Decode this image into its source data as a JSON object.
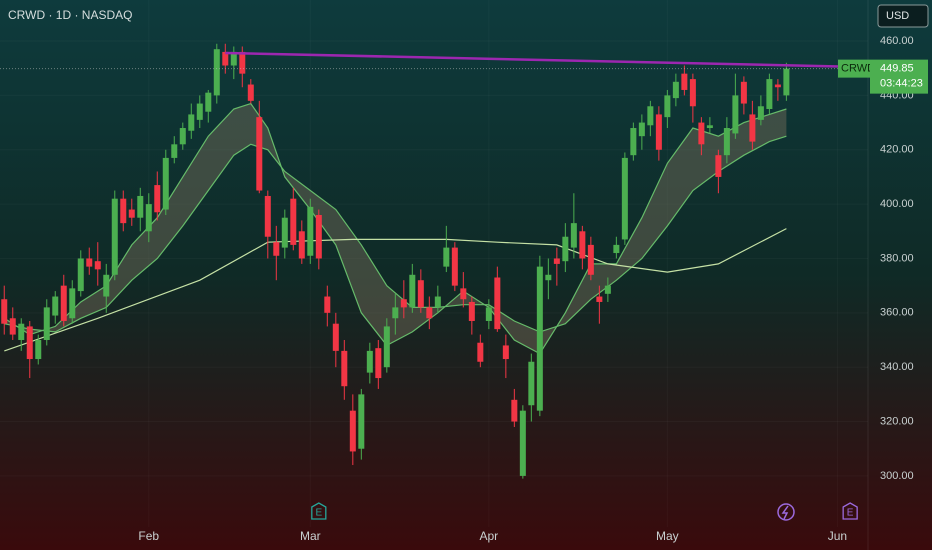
{
  "chart_data": {
    "type": "candlestick",
    "title": "CRWD · 1D · NASDAQ",
    "currency": "USD",
    "ticker": "CRWD",
    "countdown": "03:44:23",
    "up_color": "#4caf50",
    "down_color": "#f23645",
    "open": [
      365,
      358,
      350,
      355,
      343,
      350,
      359,
      370,
      358,
      368,
      380,
      379,
      366,
      374,
      402,
      398,
      395,
      390,
      407,
      398,
      417,
      422,
      427,
      431,
      434,
      440,
      456,
      451,
      456,
      444,
      432,
      403,
      386,
      384,
      402,
      390,
      381,
      396,
      366,
      356,
      346,
      324,
      310,
      338,
      347,
      340,
      358,
      365,
      362,
      372,
      362,
      362,
      377,
      384,
      369,
      364,
      349,
      357,
      373,
      348,
      328,
      300,
      326,
      324,
      372,
      380,
      379,
      384,
      390,
      385,
      366,
      367,
      382,
      387,
      418,
      425,
      429,
      433,
      432,
      439,
      448,
      446,
      430,
      428,
      418,
      418,
      426,
      445,
      433,
      431,
      435,
      444,
      440
    ],
    "high": [
      370,
      362,
      358,
      357,
      352,
      365,
      368,
      374,
      372,
      383,
      384,
      386,
      378,
      405,
      405,
      402,
      406,
      404,
      412,
      420,
      425,
      430,
      437,
      440,
      442,
      459,
      459,
      458,
      458,
      446,
      438,
      405,
      392,
      398,
      406,
      394,
      402,
      398,
      370,
      360,
      350,
      330,
      332,
      349,
      350,
      358,
      367,
      372,
      378,
      376,
      366,
      370,
      392,
      386,
      375,
      366,
      352,
      365,
      377,
      352,
      332,
      326,
      345,
      381,
      380,
      384,
      393,
      404,
      392,
      388,
      370,
      373,
      388,
      419,
      430,
      433,
      438,
      436,
      442,
      448,
      451,
      448,
      432,
      432,
      420,
      432,
      448,
      447,
      438,
      440,
      448,
      446,
      452
    ],
    "low": [
      352,
      350,
      346,
      336,
      341,
      348,
      356,
      355,
      356,
      366,
      374,
      370,
      360,
      372,
      390,
      392,
      390,
      386,
      394,
      396,
      415,
      420,
      424,
      428,
      430,
      437,
      448,
      446,
      443,
      437,
      404,
      380,
      372,
      380,
      383,
      378,
      378,
      376,
      355,
      340,
      328,
      304,
      306,
      334,
      332,
      338,
      352,
      358,
      360,
      360,
      354,
      360,
      375,
      368,
      362,
      352,
      340,
      354,
      353,
      336,
      318,
      299,
      320,
      322,
      365,
      370,
      375,
      380,
      376,
      372,
      356,
      364,
      380,
      385,
      416,
      420,
      425,
      416,
      428,
      436,
      440,
      430,
      418,
      426,
      404,
      415,
      424,
      433,
      420,
      429,
      433,
      438,
      438
    ],
    "close": [
      356,
      352,
      356,
      343,
      350,
      362,
      366,
      357,
      369,
      380,
      377,
      376,
      374,
      402,
      393,
      395,
      403,
      400,
      397,
      417,
      422,
      428,
      433,
      437,
      441,
      457,
      451,
      456,
      448,
      438,
      405,
      388,
      381,
      395,
      385,
      380,
      399,
      380,
      360,
      346,
      333,
      309,
      330,
      346,
      336,
      355,
      362,
      362,
      374,
      362,
      358,
      366,
      384,
      370,
      365,
      357,
      342,
      362,
      354,
      343,
      320,
      324,
      342,
      377,
      374,
      378,
      388,
      393,
      380,
      374,
      364,
      370,
      385,
      417,
      428,
      430,
      436,
      420,
      440,
      445,
      442,
      436,
      422,
      429,
      410,
      428,
      440,
      437,
      423,
      436,
      446,
      443,
      449.85
    ],
    "lines": [
      {
        "color": "#66bb6a",
        "x": [
          0,
          3,
          6,
          9,
          12,
          15,
          18,
          21,
          24,
          27,
          29,
          31,
          33,
          36,
          39,
          42,
          45,
          48,
          51,
          54,
          57,
          60,
          63,
          66,
          69,
          72,
          75,
          78,
          81,
          84,
          87,
          90,
          92
        ],
        "values": [
          358,
          352,
          355,
          364,
          370,
          385,
          395,
          410,
          425,
          435,
          437,
          428,
          410,
          398,
          385,
          360,
          348,
          353,
          360,
          368,
          362,
          350,
          345,
          360,
          378,
          378,
          395,
          415,
          428,
          425,
          430,
          433,
          435
        ]
      },
      {
        "color": "#66bb6a",
        "x": [
          0,
          3,
          6,
          9,
          12,
          15,
          18,
          21,
          24,
          27,
          29,
          31,
          33,
          36,
          39,
          42,
          45,
          48,
          51,
          54,
          57,
          60,
          63,
          66,
          69,
          72,
          75,
          78,
          81,
          84,
          87,
          90,
          92
        ],
        "values": [
          356,
          354,
          353,
          358,
          362,
          372,
          380,
          392,
          405,
          418,
          422,
          420,
          412,
          405,
          398,
          385,
          370,
          362,
          362,
          363,
          363,
          357,
          353,
          356,
          365,
          372,
          380,
          392,
          405,
          412,
          418,
          423,
          425
        ]
      },
      {
        "color": "#c5e1a5",
        "x": [
          0,
          11,
          23,
          31,
          41,
          52,
          58,
          65,
          71,
          78,
          84,
          92
        ],
        "values": [
          346,
          358,
          372,
          386,
          387,
          387,
          386,
          385,
          378,
          375,
          378,
          391
        ]
      }
    ],
    "band_color": "rgba(120,110,90,0.45)",
    "trendline": {
      "color": "#9c27b0",
      "x": [
        26,
        101.6
      ],
      "values": [
        455.6,
        450.4
      ]
    },
    "events": [
      {
        "x": 37,
        "label": "E"
      },
      {
        "x": 99.5,
        "label": "E"
      }
    ],
    "xlim": [
      -0.5,
      101.6
    ],
    "ylim": [
      281.2,
      475.1
    ],
    "yticks": [
      {
        "value": 300,
        "label": "300.00"
      },
      {
        "value": 320,
        "label": "320.00"
      },
      {
        "value": 340,
        "label": "340.00"
      },
      {
        "value": 360,
        "label": "360.00"
      },
      {
        "value": 380,
        "label": "380.00"
      },
      {
        "value": 400,
        "label": "400.00"
      },
      {
        "value": 420,
        "label": "420.00"
      },
      {
        "value": 440,
        "label": "440.00"
      },
      {
        "value": 460,
        "label": "460.00"
      }
    ],
    "xticks": [
      {
        "value": 17,
        "label": "Feb"
      },
      {
        "value": 36,
        "label": "Mar"
      },
      {
        "value": 57,
        "label": "Apr"
      },
      {
        "value": 78,
        "label": "May"
      },
      {
        "value": 98,
        "label": "Jun"
      }
    ]
  }
}
